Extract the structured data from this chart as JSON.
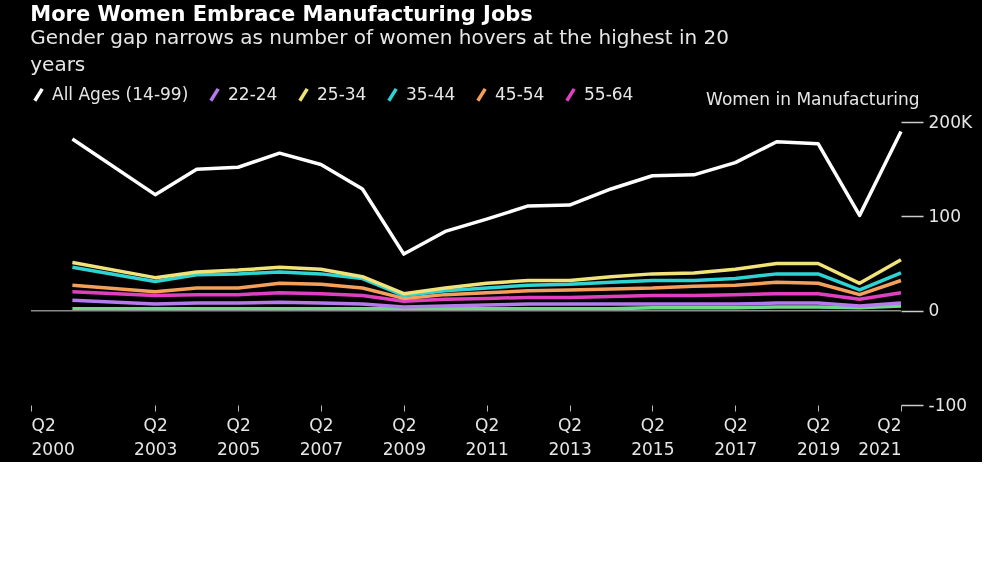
{
  "chart_data": {
    "type": "line",
    "title": "More Women Embrace Manufacturing Jobs",
    "subtitle": "Gender gap narrows as number of women hovers at the highest in 20 years",
    "ylabel": "Women in Manufacturing",
    "x": [
      "2001-04",
      "2003-04",
      "2004-04",
      "2005-04",
      "2006-04",
      "2007-04",
      "2008-04",
      "2009-04",
      "2010-04",
      "2011-04",
      "2012-04",
      "2013-04",
      "2014-04",
      "2015-04",
      "2016-04",
      "2017-04",
      "2018-04",
      "2019-04",
      "2020-04",
      "2021-04"
    ],
    "series": [
      {
        "name": "All Ages (14-99)",
        "color": "#ffffff",
        "values": [
          182,
          123,
          150,
          152,
          167,
          155,
          129,
          60,
          84,
          97,
          111,
          112,
          129,
          143,
          144,
          157,
          179,
          177,
          101,
          190
        ]
      },
      {
        "name": "22-24",
        "color": "#b57bed",
        "values": [
          11,
          7,
          8,
          8,
          9,
          8,
          7,
          4,
          5,
          6,
          7,
          7,
          7,
          7,
          7,
          7,
          8,
          8,
          5,
          8
        ]
      },
      {
        "name": "25-34",
        "color": "#f2e27a",
        "values": [
          51,
          35,
          41,
          43,
          46,
          44,
          36,
          18,
          24,
          29,
          32,
          32,
          36,
          39,
          40,
          44,
          50,
          50,
          29,
          54
        ]
      },
      {
        "name": "35-44",
        "color": "#2ed3d3",
        "values": [
          46,
          31,
          38,
          39,
          41,
          39,
          34,
          16,
          21,
          24,
          27,
          28,
          30,
          32,
          32,
          34,
          39,
          39,
          22,
          40
        ]
      },
      {
        "name": "45-54",
        "color": "#f5a05a",
        "values": [
          27,
          20,
          24,
          24,
          29,
          28,
          24,
          13,
          17,
          19,
          21,
          22,
          23,
          24,
          26,
          27,
          30,
          29,
          17,
          32
        ]
      },
      {
        "name": "55-64",
        "color": "#e040c0",
        "values": [
          20,
          16,
          17,
          17,
          19,
          18,
          16,
          10,
          12,
          13,
          14,
          14,
          15,
          16,
          16,
          17,
          18,
          18,
          12,
          19
        ]
      },
      {
        "name": null,
        "color": "#6fd98a",
        "values": [
          2,
          2,
          2,
          2,
          2,
          2,
          2,
          2,
          2,
          2,
          2,
          2,
          2,
          3,
          3,
          3,
          4,
          4,
          3,
          5
        ]
      }
    ],
    "xlim": [
      "2000-04",
      "2021-04"
    ],
    "xticks": [
      {
        "value": "2000-04",
        "label": "Q2 2000"
      },
      {
        "value": "2003-04",
        "label": "Q2 2003"
      },
      {
        "value": "2005-04",
        "label": "Q2 2005"
      },
      {
        "value": "2007-04",
        "label": "Q2 2007"
      },
      {
        "value": "2009-04",
        "label": "Q2 2009"
      },
      {
        "value": "2011-04",
        "label": "Q2 2011"
      },
      {
        "value": "2013-04",
        "label": "Q2 2013"
      },
      {
        "value": "2015-04",
        "label": "Q2 2015"
      },
      {
        "value": "2017-04",
        "label": "Q2 2017"
      },
      {
        "value": "2019-04",
        "label": "Q2 2019"
      },
      {
        "value": "2021-04",
        "label": "Q2 2021"
      }
    ],
    "ylim": [
      -100,
      200
    ],
    "yticks": [
      -100,
      0,
      100,
      {
        "value": 200,
        "label": "200K"
      }
    ],
    "ref_lines": [
      {
        "axis": "y",
        "value": 0,
        "label": null,
        "color": "#8c8c8c"
      }
    ],
    "grid": false,
    "legend": "top left"
  }
}
